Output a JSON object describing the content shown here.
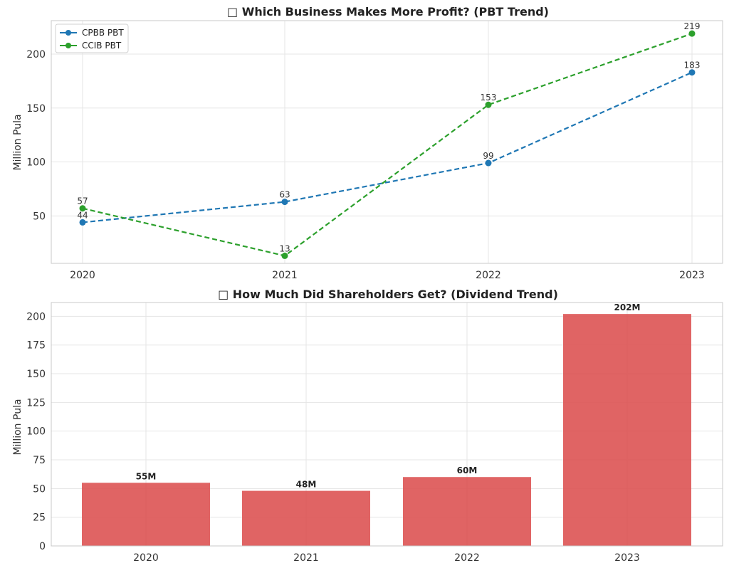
{
  "chart_data": [
    {
      "type": "line",
      "title": "□ Which Business Makes More Profit? (PBT Trend)",
      "xlabel": "",
      "ylabel": "Million Pula",
      "categories": [
        "2020",
        "2021",
        "2022",
        "2023"
      ],
      "ylim": [
        6,
        231
      ],
      "yticks": [
        50,
        100,
        150,
        200
      ],
      "grid": true,
      "legend_position": "top-left",
      "series": [
        {
          "name": "CPBB PBT",
          "values": [
            44,
            63,
            99,
            183
          ],
          "labels": [
            "44",
            "63",
            "99",
            "183"
          ],
          "color": "#1f77b4",
          "style": "dashed",
          "marker": "circle"
        },
        {
          "name": "CCIB PBT",
          "values": [
            57,
            13,
            153,
            219
          ],
          "labels": [
            "57",
            "13",
            "153",
            "219"
          ],
          "color": "#2ca02c",
          "style": "dashed",
          "marker": "circle"
        }
      ]
    },
    {
      "type": "bar",
      "title": "□ How Much Did Shareholders Get? (Dividend Trend)",
      "xlabel": "",
      "ylabel": "Million Pula",
      "categories": [
        "2020",
        "2021",
        "2022",
        "2023"
      ],
      "values": [
        55,
        48,
        60,
        202
      ],
      "labels": [
        "55M",
        "48M",
        "60M",
        "202M"
      ],
      "ylim": [
        0,
        212
      ],
      "yticks": [
        0,
        25,
        50,
        75,
        100,
        125,
        150,
        175,
        200
      ],
      "grid": true,
      "color": "#dc4e4e"
    }
  ]
}
